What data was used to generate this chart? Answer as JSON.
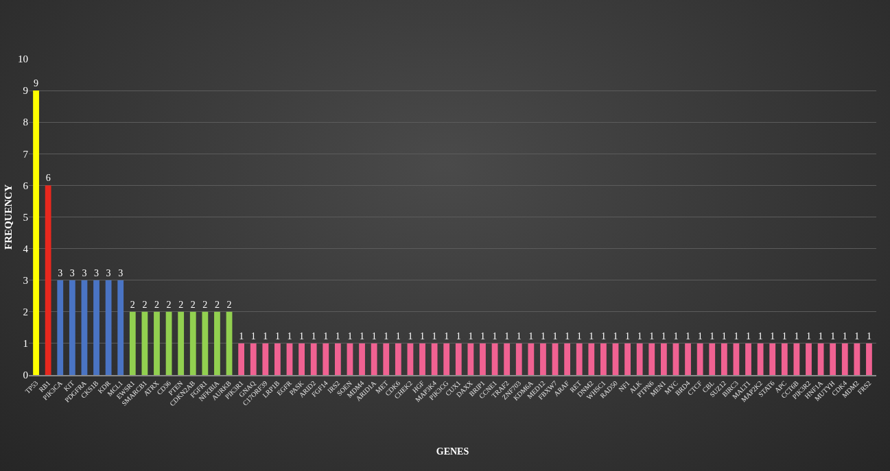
{
  "chart_data": {
    "type": "bar",
    "xlabel": "GENES",
    "ylabel": "FREQUENCY",
    "categories": [
      "TP53",
      "RB1",
      "PIK3CA",
      "KIT",
      "PDGFRA",
      "CKS1B",
      "KDR",
      "MCL1",
      "EWSR1",
      "SMARCB1",
      "ATRX",
      "CD36",
      "PTEN",
      "CDKN2AB",
      "FGFR1",
      "NFKBIA",
      "AURKB",
      "PIK3R1",
      "GNAQ",
      "C17ORF39",
      "LRP1B",
      "EGFR",
      "PASK",
      "ARID2",
      "FGF14",
      "IRS2",
      "SOEN",
      "MDM4",
      "ARID1A",
      "MET",
      "CDK6",
      "CHEK2",
      "HGF",
      "MAP3K4",
      "PIK3CG",
      "CUX1",
      "DAXX",
      "BRIP1",
      "CCNE1",
      "TRAF2",
      "ZNF703",
      "KDM6A",
      "MED12",
      "FBXW7",
      "ARAF",
      "RET",
      "DNM2",
      "WHSC1",
      "RAD50",
      "NF1",
      "ALK",
      "PTPN6",
      "MEN1",
      "MYC",
      "BRD4",
      "CTCF",
      "CBL",
      "SUZ12",
      "BIRC3",
      "MALT1",
      "MAP2K2",
      "STAT6",
      "APC",
      "CCT6B",
      "PIK3R2",
      "HNF1A",
      "MUTYH",
      "CDK4",
      "MDM2",
      "FRS2"
    ],
    "values": [
      9,
      6,
      3,
      3,
      3,
      3,
      3,
      3,
      2,
      2,
      2,
      2,
      2,
      2,
      2,
      2,
      2,
      1,
      1,
      1,
      1,
      1,
      1,
      1,
      1,
      1,
      1,
      1,
      1,
      1,
      1,
      1,
      1,
      1,
      1,
      1,
      1,
      1,
      1,
      1,
      1,
      1,
      1,
      1,
      1,
      1,
      1,
      1,
      1,
      1,
      1,
      1,
      1,
      1,
      1,
      1,
      1,
      1,
      1,
      1,
      1,
      1,
      1,
      1,
      1,
      1,
      1,
      1,
      1,
      1
    ],
    "colors": [
      "#ffff00",
      "#e8281e",
      "#4a74c4",
      "#4a74c4",
      "#4a74c4",
      "#4a74c4",
      "#4a74c4",
      "#4a74c4",
      "#92d050",
      "#92d050",
      "#92d050",
      "#92d050",
      "#92d050",
      "#92d050",
      "#92d050",
      "#92d050",
      "#92d050",
      "#f06292",
      "#f06292",
      "#f06292",
      "#f06292",
      "#f06292",
      "#f06292",
      "#f06292",
      "#f06292",
      "#f06292",
      "#f06292",
      "#f06292",
      "#f06292",
      "#f06292",
      "#f06292",
      "#f06292",
      "#f06292",
      "#f06292",
      "#f06292",
      "#f06292",
      "#f06292",
      "#f06292",
      "#f06292",
      "#f06292",
      "#f06292",
      "#f06292",
      "#f06292",
      "#f06292",
      "#f06292",
      "#f06292",
      "#f06292",
      "#f06292",
      "#f06292",
      "#f06292",
      "#f06292",
      "#f06292",
      "#f06292",
      "#f06292",
      "#f06292",
      "#f06292",
      "#f06292",
      "#f06292",
      "#f06292",
      "#f06292",
      "#f06292",
      "#f06292",
      "#f06292",
      "#f06292",
      "#f06292",
      "#f06292",
      "#f06292",
      "#f06292",
      "#f06292",
      "#f06292"
    ],
    "ylim": [
      0,
      10
    ],
    "yticks": [
      0,
      1,
      2,
      3,
      4,
      5,
      6,
      7,
      8,
      9,
      10
    ],
    "grid": "y",
    "data_labels": true
  }
}
